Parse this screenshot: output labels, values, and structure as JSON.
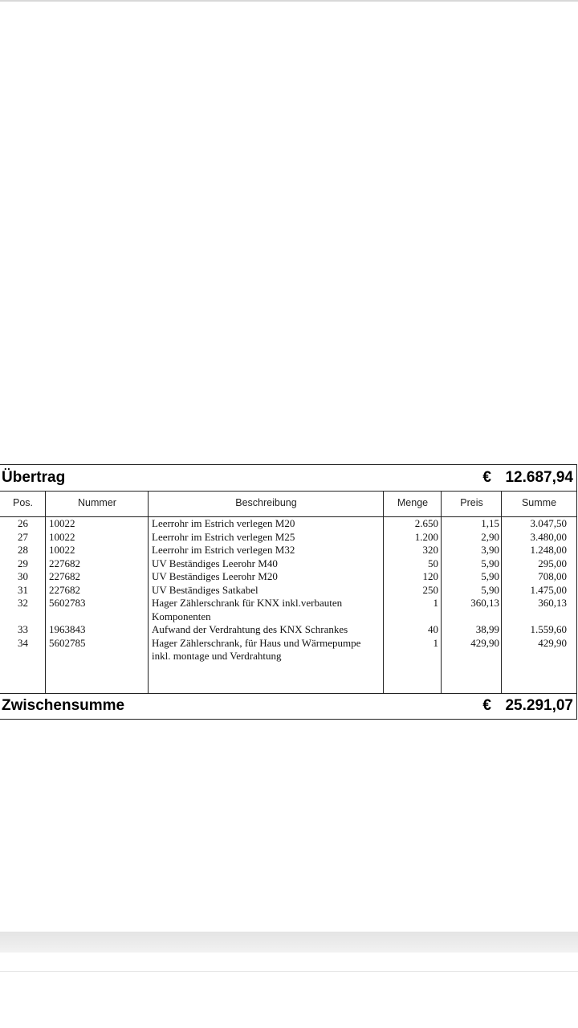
{
  "carry_over": {
    "label": "Übertrag",
    "currency": "€",
    "amount": "12.687,94"
  },
  "columns": [
    "Pos.",
    "Nummer",
    "Beschreibung",
    "Menge",
    "Preis",
    "Summe"
  ],
  "rows": [
    {
      "pos": "26",
      "nummer": "10022",
      "desc": [
        "Leerrohr im Estrich verlegen M20"
      ],
      "menge": "2.650",
      "preis": "1,15",
      "summe": "3.047,50"
    },
    {
      "pos": "27",
      "nummer": "10022",
      "desc": [
        "Leerrohr im Estrich verlegen M25"
      ],
      "menge": "1.200",
      "preis": "2,90",
      "summe": "3.480,00"
    },
    {
      "pos": "28",
      "nummer": "10022",
      "desc": [
        "Leerrohr im Estrich verlegen M32"
      ],
      "menge": "320",
      "preis": "3,90",
      "summe": "1.248,00"
    },
    {
      "pos": "29",
      "nummer": "227682",
      "desc": [
        "UV Beständiges Leerohr M40"
      ],
      "menge": "50",
      "preis": "5,90",
      "summe": "295,00"
    },
    {
      "pos": "30",
      "nummer": "227682",
      "desc": [
        "UV Beständiges Leerohr M20"
      ],
      "menge": "120",
      "preis": "5,90",
      "summe": "708,00"
    },
    {
      "pos": "31",
      "nummer": "227682",
      "desc": [
        "UV Beständiges Satkabel"
      ],
      "menge": "250",
      "preis": "5,90",
      "summe": "1.475,00"
    },
    {
      "pos": "32",
      "nummer": "5602783",
      "desc": [
        "Hager Zählerschrank für KNX inkl.verbauten",
        "Komponenten"
      ],
      "menge": "1",
      "preis": "360,13",
      "summe": "360,13"
    },
    {
      "pos": "33",
      "nummer": "1963843",
      "desc": [
        "Aufwand der Verdrahtung des KNX Schrankes"
      ],
      "menge": "40",
      "preis": "38,99",
      "summe": "1.559,60"
    },
    {
      "pos": "34",
      "nummer": "5602785",
      "desc": [
        "Hager Zählerschrank, für Haus und Wärmepumpe",
        "inkl. montage und Verdrahtung"
      ],
      "menge": "1",
      "preis": "429,90",
      "summe": "429,90"
    }
  ],
  "subtotal": {
    "label": "Zwischensumme",
    "currency": "€",
    "amount": "25.291,07"
  }
}
